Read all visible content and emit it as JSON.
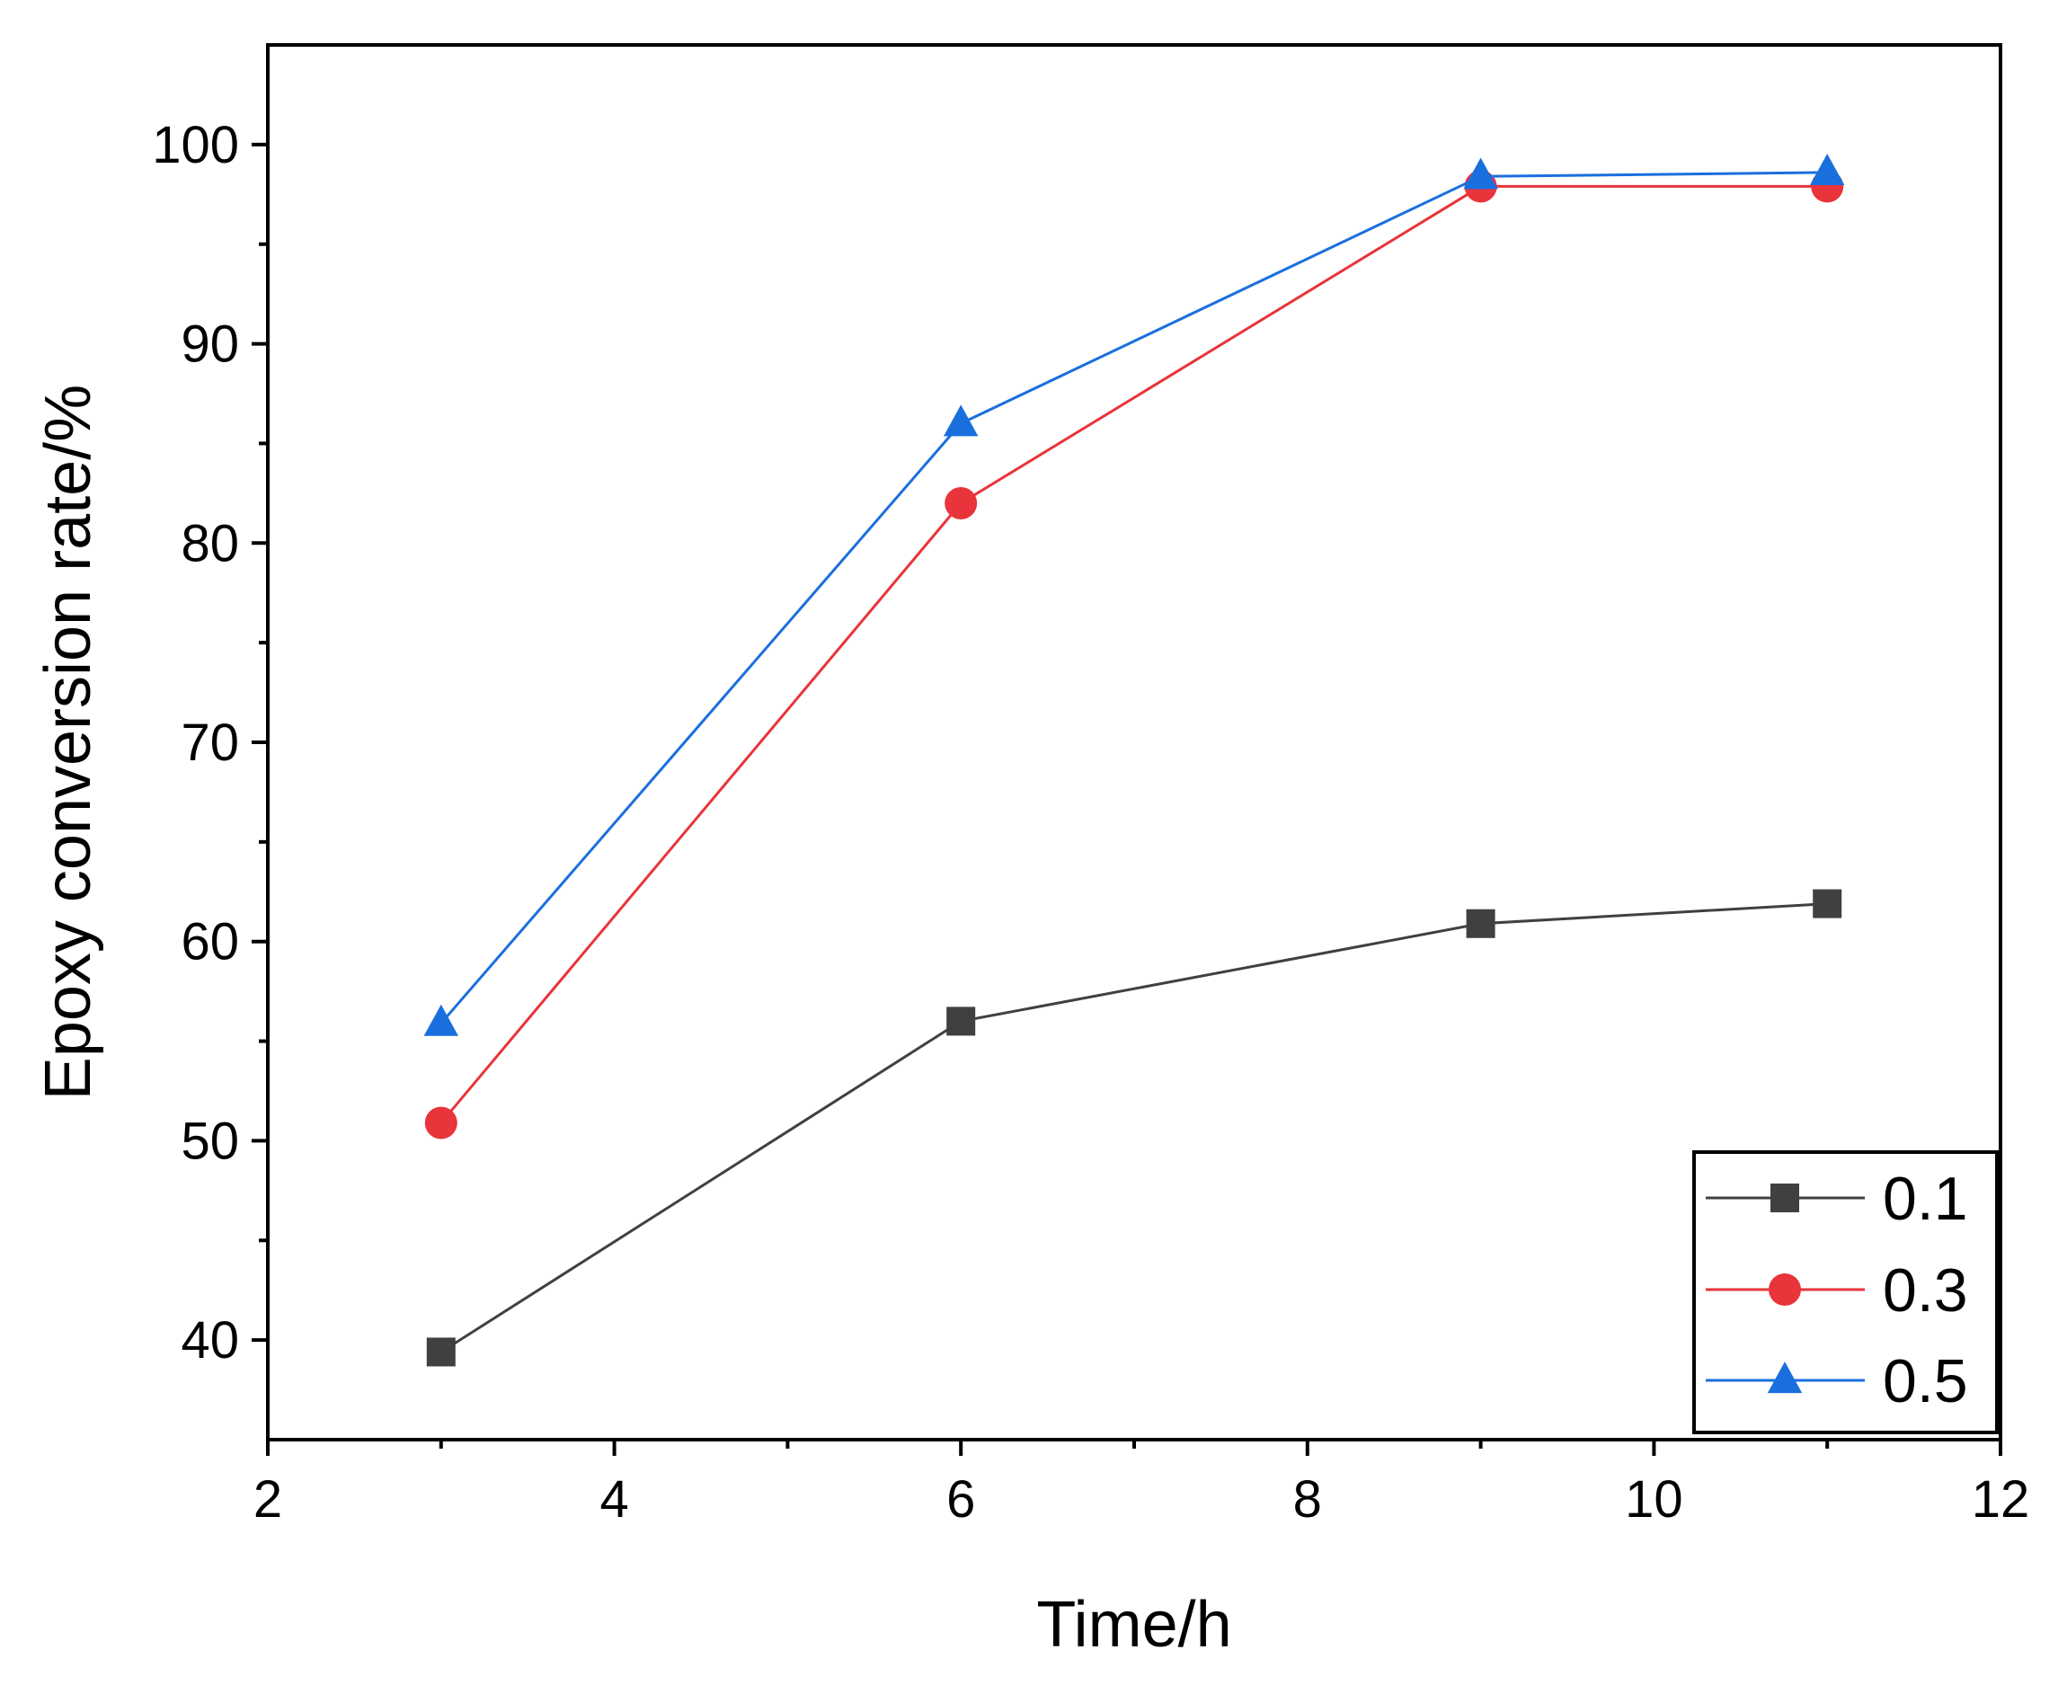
{
  "chart_data": {
    "type": "line",
    "title": "",
    "xlabel": "Time/h",
    "ylabel": "Epoxy conversion rate/%",
    "xlim": [
      2,
      12
    ],
    "ylim": [
      35,
      105
    ],
    "x_ticks": [
      2,
      4,
      6,
      8,
      10,
      12
    ],
    "x_tick_labels": [
      "2",
      "4",
      "6",
      "8",
      "10",
      "12"
    ],
    "y_ticks": [
      40,
      50,
      60,
      70,
      80,
      90,
      100
    ],
    "y_tick_labels": [
      "40",
      "50",
      "60",
      "70",
      "80",
      "90",
      "100"
    ],
    "grid": false,
    "legend_position": "bottom-right",
    "x": [
      3,
      6,
      9,
      11
    ],
    "series": [
      {
        "name": "0.1",
        "marker": "square",
        "color": "#404040",
        "values": [
          39.4,
          56.0,
          60.9,
          61.9
        ]
      },
      {
        "name": "0.3",
        "marker": "circle",
        "color": "#e8343a",
        "values": [
          50.9,
          82.0,
          97.9,
          97.9
        ]
      },
      {
        "name": "0.5",
        "marker": "triangle",
        "color": "#1a6fde",
        "values": [
          55.9,
          86.0,
          98.4,
          98.6
        ]
      }
    ]
  }
}
